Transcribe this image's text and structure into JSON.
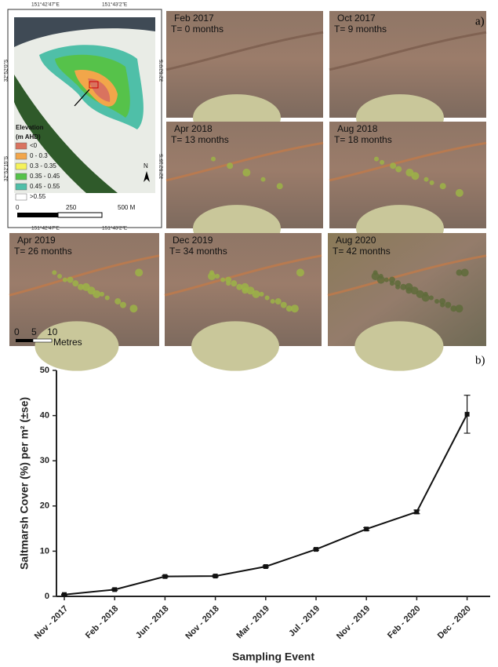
{
  "panel_a": {
    "label": "a)",
    "map": {
      "coords_top": [
        "151°42'47\"E",
        "151°43'2\"E"
      ],
      "coords_bottom": [
        "151°42'47\"E",
        "151°43'2\"E"
      ],
      "coords_left": [
        "32°52'0\"S",
        "32°52'15\"S"
      ],
      "coords_right": [
        "32°52'0\"S",
        "32°52'15\"S"
      ],
      "legend_title": [
        "Elevation",
        "(m AHD)"
      ],
      "legend": [
        {
          "label": "<0",
          "color": "#d9735f"
        },
        {
          "label": "0 - 0.3",
          "color": "#f2a64a"
        },
        {
          "label": "0.3 - 0.35",
          "color": "#f5f25a"
        },
        {
          "label": "0.35 - 0.45",
          "color": "#56c24a"
        },
        {
          "label": "0.45 - 0.55",
          "color": "#4fbfa8"
        },
        {
          "label": ">0.55",
          "color": "#ffffff"
        }
      ],
      "scale": [
        "0",
        "250",
        "500 M"
      ],
      "north": "N"
    },
    "photos": [
      {
        "date": "Feb 2017",
        "time": "T= 0 months"
      },
      {
        "date": "Oct 2017",
        "time": "T= 9 months"
      },
      {
        "date": "Apr 2018",
        "time": "T= 13 months"
      },
      {
        "date": "Aug 2018",
        "time": "T= 18 months"
      },
      {
        "date": "Apr 2019",
        "time": "T= 26 months"
      },
      {
        "date": "Dec 2019",
        "time": "T= 34 months"
      },
      {
        "date": "Aug 2020",
        "time": "T= 42 months"
      }
    ],
    "photo_scale": [
      "0",
      "5",
      "10",
      "Metres"
    ]
  },
  "chart_data": {
    "type": "line",
    "label": "b)",
    "x_label": "Sampling Event",
    "y_label": "Saltmarsh Cover (%) per m² (±se)",
    "categories": [
      "Nov - 2017",
      "Feb - 2018",
      "Jun - 2018",
      "Nov - 2018",
      "Mar - 2019",
      "Jul - 2019",
      "Nov - 2019",
      "Feb - 2020",
      "Dec - 2020"
    ],
    "values": [
      0.4,
      1.5,
      4.4,
      4.5,
      6.6,
      10.4,
      14.9,
      18.7,
      40.3
    ],
    "errors": [
      0.1,
      0.2,
      0.2,
      0.2,
      0.2,
      0.2,
      0.3,
      0.4,
      4.2
    ],
    "color": "#111111",
    "ylim": [
      0,
      50
    ],
    "yticks": [
      0,
      10,
      20,
      30,
      40,
      50
    ]
  }
}
